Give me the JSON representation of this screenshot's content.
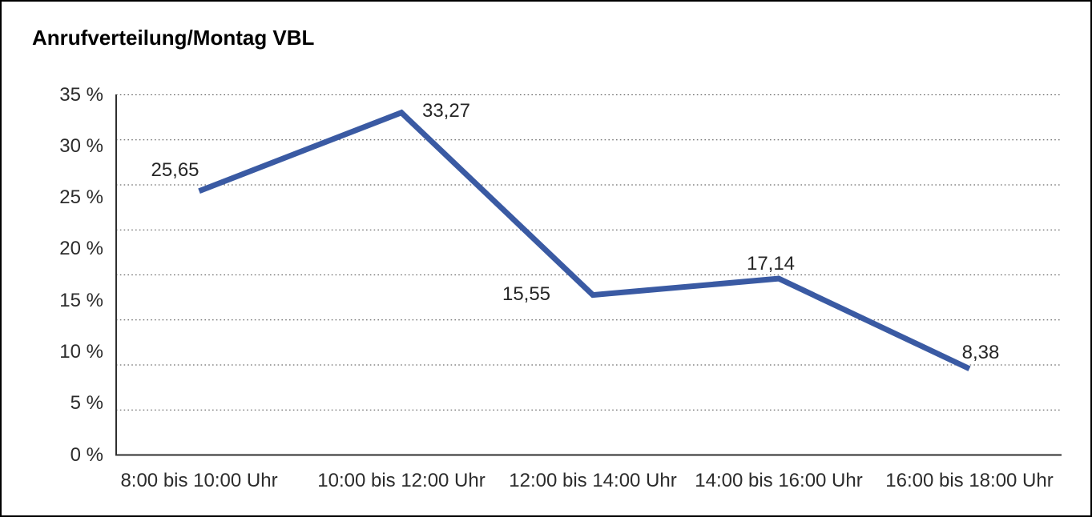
{
  "chart_data": {
    "type": "line",
    "title": "Anrufverteilung/Montag VBL",
    "categories": [
      "8:00 bis 10:00 Uhr",
      "10:00 bis 12:00 Uhr",
      "12:00 bis 14:00 Uhr",
      "14:00 bis 16:00 Uhr",
      "16:00 bis 18:00 Uhr"
    ],
    "values": [
      25.65,
      33.27,
      15.55,
      17.14,
      8.38
    ],
    "value_labels": [
      "25,65",
      "33,27",
      "15,55",
      "17,14",
      "8,38"
    ],
    "value_label_placements": [
      "above-left",
      "right",
      "left",
      "above",
      "above-right"
    ],
    "y_ticks": [
      "35 %",
      "30 %",
      "25 %",
      "20 %",
      "15 %",
      "10 %",
      "5 %",
      "0 %"
    ],
    "y_tick_values": [
      35,
      30,
      25,
      20,
      15,
      10,
      5,
      0
    ],
    "ylim": [
      0,
      35
    ],
    "xlabel": "",
    "ylabel": "",
    "legend": "none",
    "grid": "horizontal dotted, 8 equal divisions between 0 % and 35 %",
    "line_color": "#3a5aa3",
    "grid_color": "#4a4a4a",
    "axis_color": "#2f2f2f",
    "text_color": "#2c2c2c",
    "border_color": "#000000",
    "background_color": "#ffffff"
  }
}
